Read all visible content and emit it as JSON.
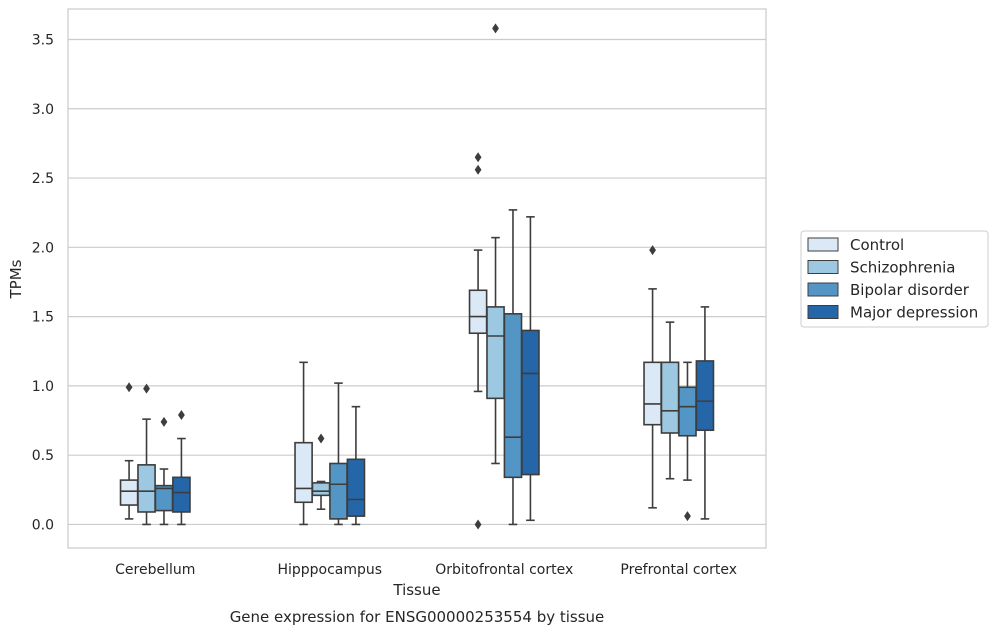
{
  "chart_data": {
    "type": "box",
    "xlabel": "Tissue",
    "ylabel": "TPMs",
    "caption": "Gene expression for ENSG00000253554 by tissue",
    "ylim": [
      -0.17,
      3.72
    ],
    "yticks": [
      "0.0",
      "0.5",
      "1.0",
      "1.5",
      "2.0",
      "2.5",
      "3.0",
      "3.5"
    ],
    "grid": "horizontal",
    "legend_position": "right",
    "categories": [
      "Cerebellum",
      "Hipppocampus",
      "Orbitofrontal cortex",
      "Prefrontal cortex"
    ],
    "series": [
      {
        "name": "Control",
        "color": "#dbe9f6",
        "boxes": [
          {
            "whislo": 0.04,
            "q1": 0.14,
            "med": 0.24,
            "q3": 0.32,
            "whishi": 0.46,
            "fliers": [
              0.99
            ]
          },
          {
            "whislo": 0.0,
            "q1": 0.16,
            "med": 0.26,
            "q3": 0.59,
            "whishi": 1.17,
            "fliers": []
          },
          {
            "whislo": 0.96,
            "q1": 1.38,
            "med": 1.5,
            "q3": 1.69,
            "whishi": 1.98,
            "fliers": [
              2.65,
              2.56,
              0.0
            ]
          },
          {
            "whislo": 0.12,
            "q1": 0.72,
            "med": 0.87,
            "q3": 1.17,
            "whishi": 1.7,
            "fliers": [
              1.98
            ]
          }
        ]
      },
      {
        "name": "Schizophrenia",
        "color": "#9cc9e1",
        "boxes": [
          {
            "whislo": 0.0,
            "q1": 0.09,
            "med": 0.24,
            "q3": 0.43,
            "whishi": 0.76,
            "fliers": [
              0.98
            ]
          },
          {
            "whislo": 0.11,
            "q1": 0.21,
            "med": 0.24,
            "q3": 0.3,
            "whishi": 0.31,
            "fliers": [
              0.62
            ]
          },
          {
            "whislo": 0.44,
            "q1": 0.91,
            "med": 1.36,
            "q3": 1.57,
            "whishi": 2.07,
            "fliers": [
              3.58
            ]
          },
          {
            "whislo": 0.33,
            "q1": 0.66,
            "med": 0.82,
            "q3": 1.17,
            "whishi": 1.46,
            "fliers": []
          }
        ]
      },
      {
        "name": "Bipolar disorder",
        "color": "#5396c6",
        "boxes": [
          {
            "whislo": 0.0,
            "q1": 0.1,
            "med": 0.26,
            "q3": 0.28,
            "whishi": 0.4,
            "fliers": [
              0.74
            ]
          },
          {
            "whislo": 0.0,
            "q1": 0.04,
            "med": 0.29,
            "q3": 0.44,
            "whishi": 1.02,
            "fliers": []
          },
          {
            "whislo": 0.0,
            "q1": 0.34,
            "med": 0.63,
            "q3": 1.52,
            "whishi": 2.27,
            "fliers": []
          },
          {
            "whislo": 0.32,
            "q1": 0.64,
            "med": 0.85,
            "q3": 0.99,
            "whishi": 1.17,
            "fliers": [
              0.06
            ]
          }
        ]
      },
      {
        "name": "Major depression",
        "color": "#2566a8",
        "boxes": [
          {
            "whislo": 0.0,
            "q1": 0.09,
            "med": 0.23,
            "q3": 0.34,
            "whishi": 0.62,
            "fliers": [
              0.79
            ]
          },
          {
            "whislo": 0.0,
            "q1": 0.06,
            "med": 0.18,
            "q3": 0.47,
            "whishi": 0.85,
            "fliers": []
          },
          {
            "whislo": 0.03,
            "q1": 0.36,
            "med": 1.09,
            "q3": 1.4,
            "whishi": 2.22,
            "fliers": []
          },
          {
            "whislo": 0.04,
            "q1": 0.68,
            "med": 0.89,
            "q3": 1.18,
            "whishi": 1.57,
            "fliers": []
          }
        ]
      }
    ]
  }
}
